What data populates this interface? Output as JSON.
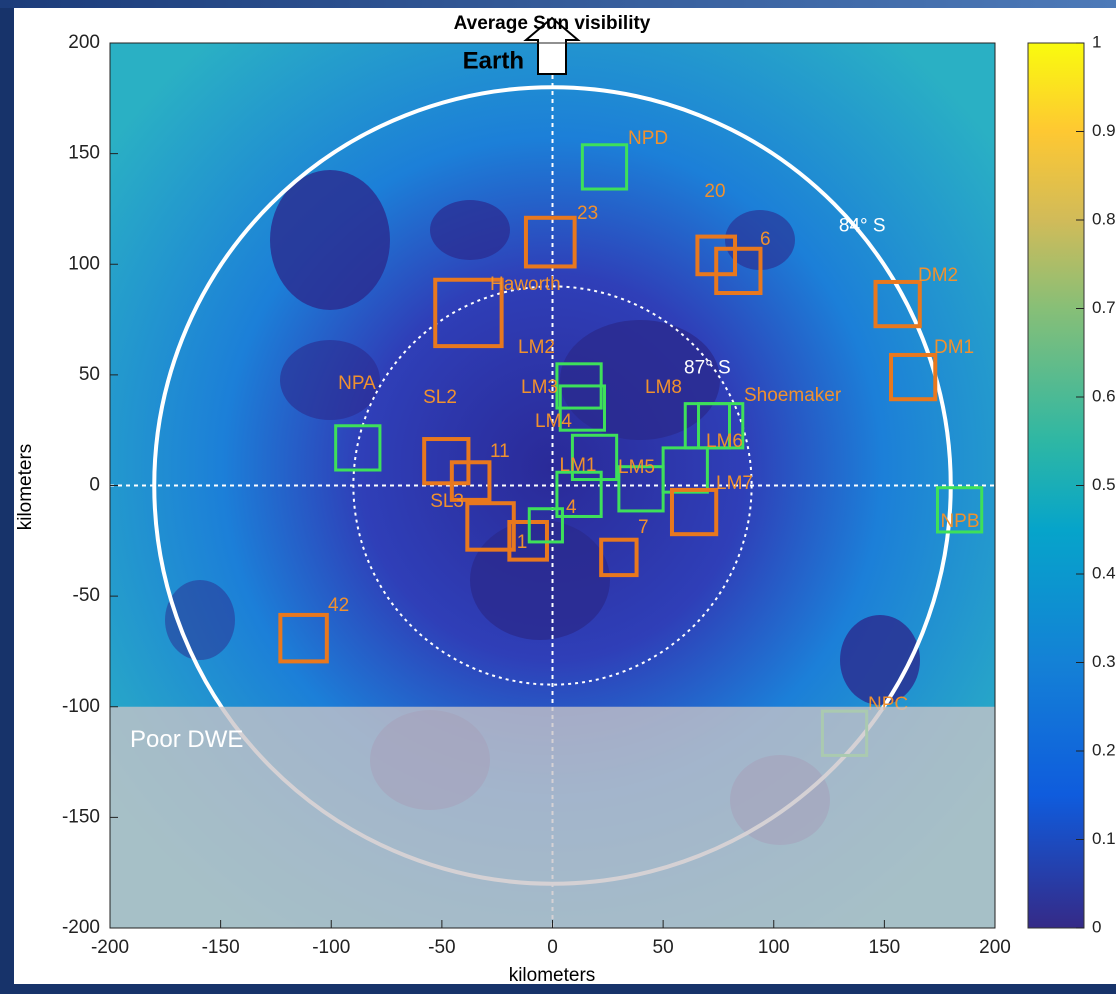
{
  "chart_data": {
    "type": "map",
    "title": "Average Sun visibility",
    "xlabel": "kilometers",
    "ylabel": "kilometers",
    "xlim": [
      -200,
      200
    ],
    "ylim": [
      -200,
      200
    ],
    "xticks": [
      -200,
      -150,
      -100,
      -50,
      0,
      50,
      100,
      150,
      200
    ],
    "yticks": [
      -200,
      -150,
      -100,
      -50,
      0,
      50,
      100,
      150,
      200
    ],
    "colorbar": {
      "lim": [
        0,
        1
      ],
      "ticks": [
        0,
        0.1,
        0.2,
        0.3,
        0.4,
        0.5,
        0.6,
        0.7,
        0.8,
        0.9,
        1
      ]
    },
    "earth_label": "Earth",
    "circles": [
      {
        "label": "84° S",
        "radius": 180
      },
      {
        "label": "87° S",
        "radius": 90
      }
    ],
    "region": {
      "label": "Poor DWE",
      "ylim": [
        -200,
        -100
      ]
    },
    "sites": [
      {
        "name": "NPD",
        "x": 23.5,
        "y": 144,
        "size": 20,
        "color": "#3ee05a"
      },
      {
        "name": "23",
        "x": -1,
        "y": 110,
        "size": 22,
        "color": "#e8781e"
      },
      {
        "name": "Haworth",
        "x": -38,
        "y": 78,
        "size": 30,
        "color": "#e8781e"
      },
      {
        "name": "20",
        "x": 74,
        "y": 104,
        "size": 17,
        "color": "#e8781e"
      },
      {
        "name": "6",
        "x": 84,
        "y": 97,
        "size": 20,
        "color": "#e8781e"
      },
      {
        "name": "DM2",
        "x": 156,
        "y": 82,
        "size": 20,
        "color": "#e8781e"
      },
      {
        "name": "DM1",
        "x": 163,
        "y": 49,
        "size": 20,
        "color": "#e8781e"
      },
      {
        "name": "LM2",
        "x": 12,
        "y": 45,
        "size": 20,
        "color": "#3ee05a"
      },
      {
        "name": "LM3",
        "x": 13.5,
        "y": 35,
        "size": 20,
        "color": "#3ee05a"
      },
      {
        "name": "LM4",
        "x": 19,
        "y": 12.7,
        "size": 20,
        "color": "#3ee05a"
      },
      {
        "name": "LM1",
        "x": 12,
        "y": -4,
        "size": 20,
        "color": "#3ee05a"
      },
      {
        "name": "LM5",
        "x": 40,
        "y": -1.5,
        "size": 20,
        "color": "#3ee05a"
      },
      {
        "name": "LM8",
        "x": 70,
        "y": 27,
        "size": 20,
        "color": "#3ee05a"
      },
      {
        "name": "Shoemaker",
        "x": 76,
        "y": 27,
        "size": 20,
        "color": "#3ee05a"
      },
      {
        "name": "LM6",
        "x": 60,
        "y": 7,
        "size": 20,
        "color": "#3ee05a"
      },
      {
        "name": "LM7",
        "x": 64,
        "y": -12,
        "size": 20,
        "color": "#e8781e"
      },
      {
        "name": "NPA",
        "x": -88,
        "y": 17,
        "size": 20,
        "color": "#3ee05a"
      },
      {
        "name": "SL2",
        "x": -48,
        "y": 11,
        "size": 20,
        "color": "#e8781e"
      },
      {
        "name": "11",
        "x": -37,
        "y": 2,
        "size": 17,
        "color": "#e8781e"
      },
      {
        "name": "SL3",
        "x": -28,
        "y": -18.5,
        "size": 21,
        "color": "#e8781e"
      },
      {
        "name": "1",
        "x": -11,
        "y": -25,
        "size": 17,
        "color": "#e8781e"
      },
      {
        "name": "4",
        "x": -3,
        "y": -18,
        "size": 15,
        "color": "#3ee05a"
      },
      {
        "name": "7",
        "x": 30,
        "y": -32.5,
        "size": 16,
        "color": "#e8781e"
      },
      {
        "name": "NPB",
        "x": 184,
        "y": -11,
        "size": 20,
        "color": "#3ee05a"
      },
      {
        "name": "NPC",
        "x": 132,
        "y": -112,
        "size": 20,
        "color": "#3ee05a"
      },
      {
        "name": "42",
        "x": -112.5,
        "y": -69,
        "size": 21,
        "color": "#e8781e"
      }
    ]
  }
}
